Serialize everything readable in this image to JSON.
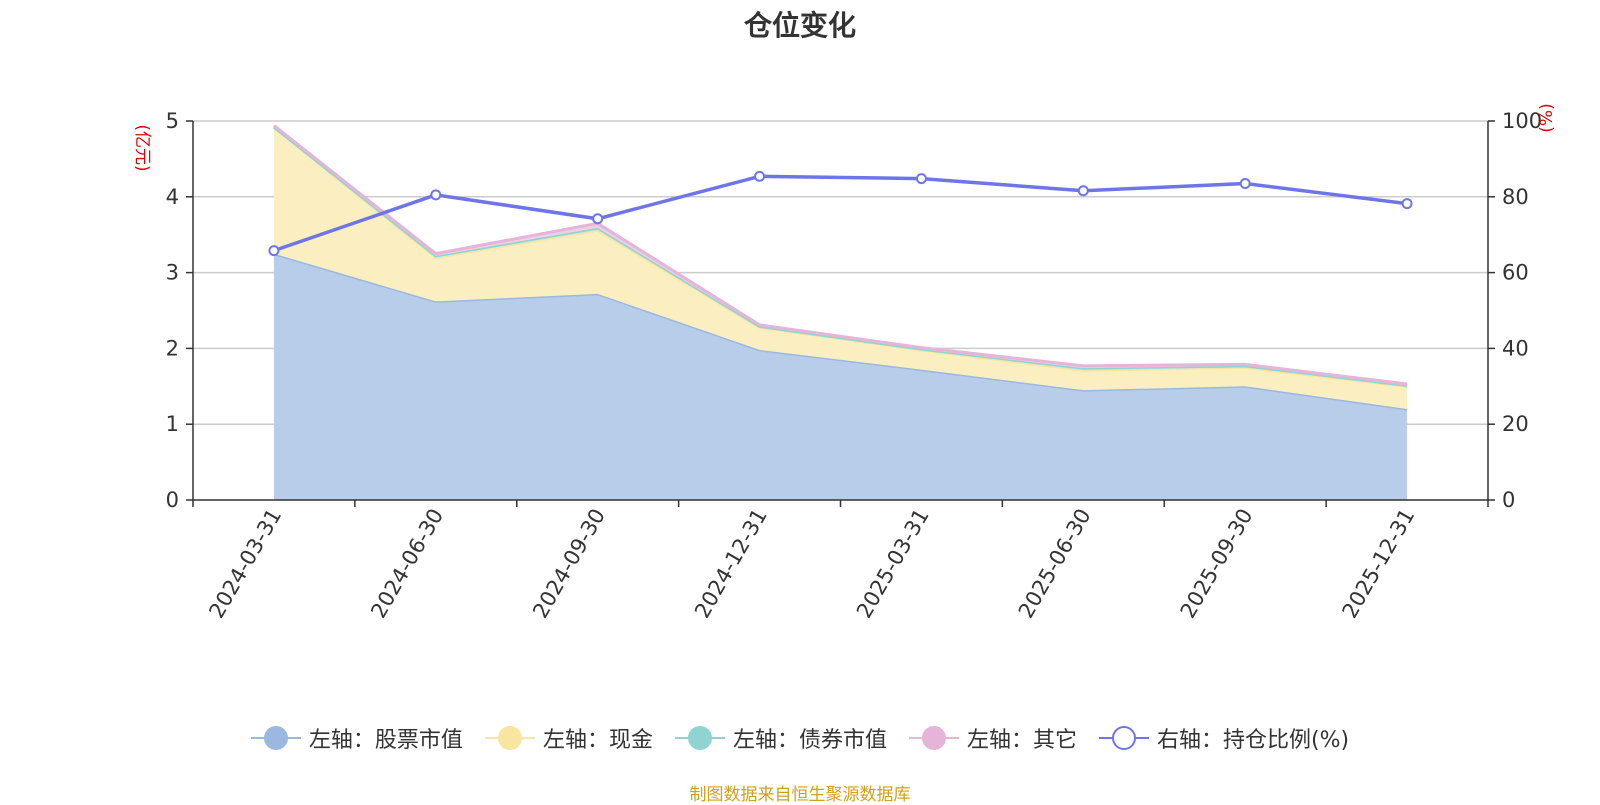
{
  "chart_data": {
    "type": "area",
    "title": "仓位变化",
    "categories": [
      "2024-03-31",
      "2024-06-30",
      "2024-09-30",
      "2024-12-31",
      "2025-03-31",
      "2025-06-30",
      "2025-09-30",
      "2025-12-31"
    ],
    "left_axis": {
      "unit": "(亿元)",
      "ylim": [
        0,
        5
      ],
      "ticks": [
        "0",
        "1",
        "2",
        "3",
        "4",
        "5"
      ]
    },
    "right_axis": {
      "unit": "(%)",
      "ylim": [
        0,
        100
      ],
      "ticks": [
        "0",
        "20",
        "40",
        "60",
        "80",
        "100"
      ]
    },
    "series": [
      {
        "name": "左轴：股票市值",
        "axis": "left",
        "kind": "stacked-area",
        "color": "#9ab8e0",
        "fill": "#b8cdea",
        "values": [
          3.25,
          2.62,
          2.72,
          1.98,
          1.72,
          1.45,
          1.5,
          1.2
        ]
      },
      {
        "name": "左轴：现金",
        "axis": "left",
        "kind": "stacked-area",
        "color": "#f8e6a0",
        "fill": "#fbefc2",
        "values": [
          1.67,
          0.58,
          0.84,
          0.3,
          0.26,
          0.26,
          0.25,
          0.3
        ]
      },
      {
        "name": "左轴：债券市值",
        "axis": "left",
        "kind": "stacked-area",
        "color": "#8fd3d3",
        "fill": "#bfe6e4",
        "values": [
          0.0,
          0.02,
          0.03,
          0.01,
          0.01,
          0.03,
          0.02,
          0.01
        ]
      },
      {
        "name": "左轴：其它",
        "axis": "left",
        "kind": "stacked-area",
        "color": "#e6b3d9",
        "fill": "#eed0e6",
        "values": [
          0.02,
          0.03,
          0.06,
          0.02,
          0.02,
          0.03,
          0.02,
          0.02
        ]
      },
      {
        "name": "右轴：持仓比例(%)",
        "axis": "right",
        "kind": "line",
        "color": "#6e75e8",
        "values": [
          65.8,
          80.5,
          74.2,
          85.4,
          84.8,
          81.6,
          83.5,
          78.2
        ]
      }
    ]
  },
  "source": "制图数据来自恒生聚源数据库"
}
